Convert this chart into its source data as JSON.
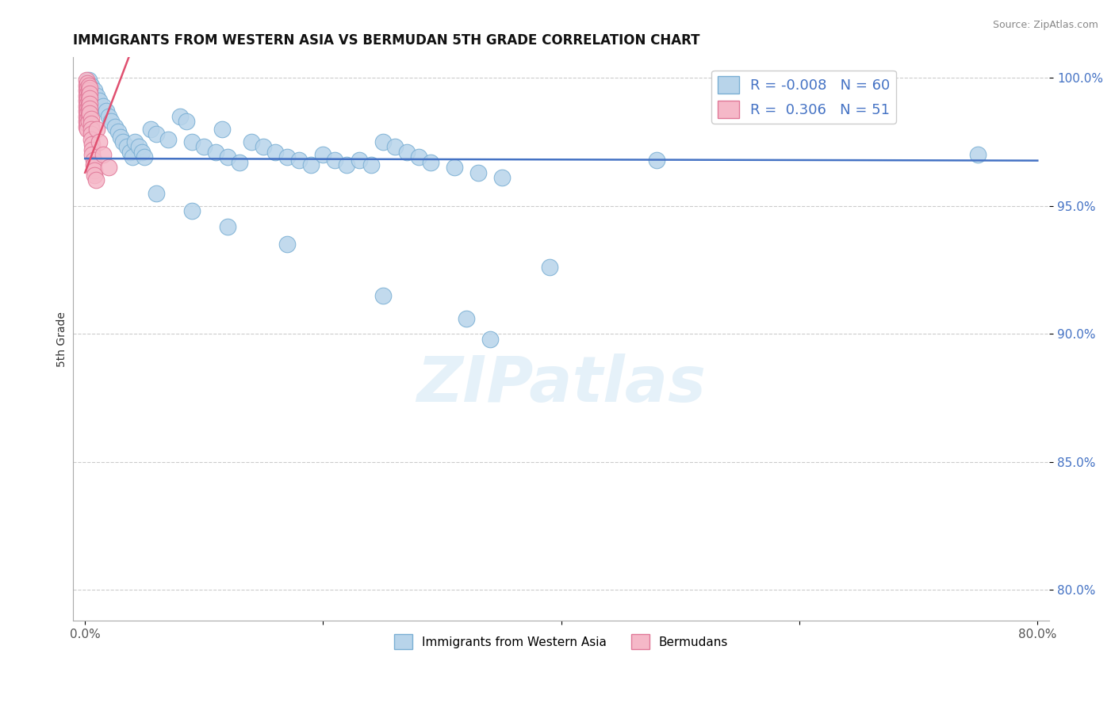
{
  "title": "IMMIGRANTS FROM WESTERN ASIA VS BERMUDAN 5TH GRADE CORRELATION CHART",
  "source": "Source: ZipAtlas.com",
  "ylabel": "5th Grade",
  "xlim": [
    -0.01,
    0.81
  ],
  "ylim": [
    0.788,
    1.008
  ],
  "xticks": [
    0.0,
    0.2,
    0.4,
    0.6,
    0.8
  ],
  "xtick_labels": [
    "0.0%",
    "",
    "",
    "",
    "80.0%"
  ],
  "yticks": [
    0.8,
    0.85,
    0.9,
    0.95,
    1.0
  ],
  "ytick_labels": [
    "80.0%",
    "85.0%",
    "90.0%",
    "95.0%",
    "100.0%"
  ],
  "blue_color": "#b8d4ea",
  "blue_edge": "#7aafd4",
  "pink_color": "#f5b8c8",
  "pink_edge": "#e07898",
  "blue_line_color": "#4472c4",
  "pink_line_color": "#e05070",
  "R_blue": -0.008,
  "N_blue": 60,
  "R_pink": 0.306,
  "N_pink": 51,
  "legend_label_blue": "Immigrants from Western Asia",
  "legend_label_pink": "Bermudans",
  "watermark": "ZIPatlas",
  "blue_line_y": 0.9685,
  "blue_line_slope": -0.001,
  "pink_line_x0": 0.0,
  "pink_line_y0": 0.963,
  "pink_line_x1": 0.031,
  "pink_line_y1": 1.001
}
